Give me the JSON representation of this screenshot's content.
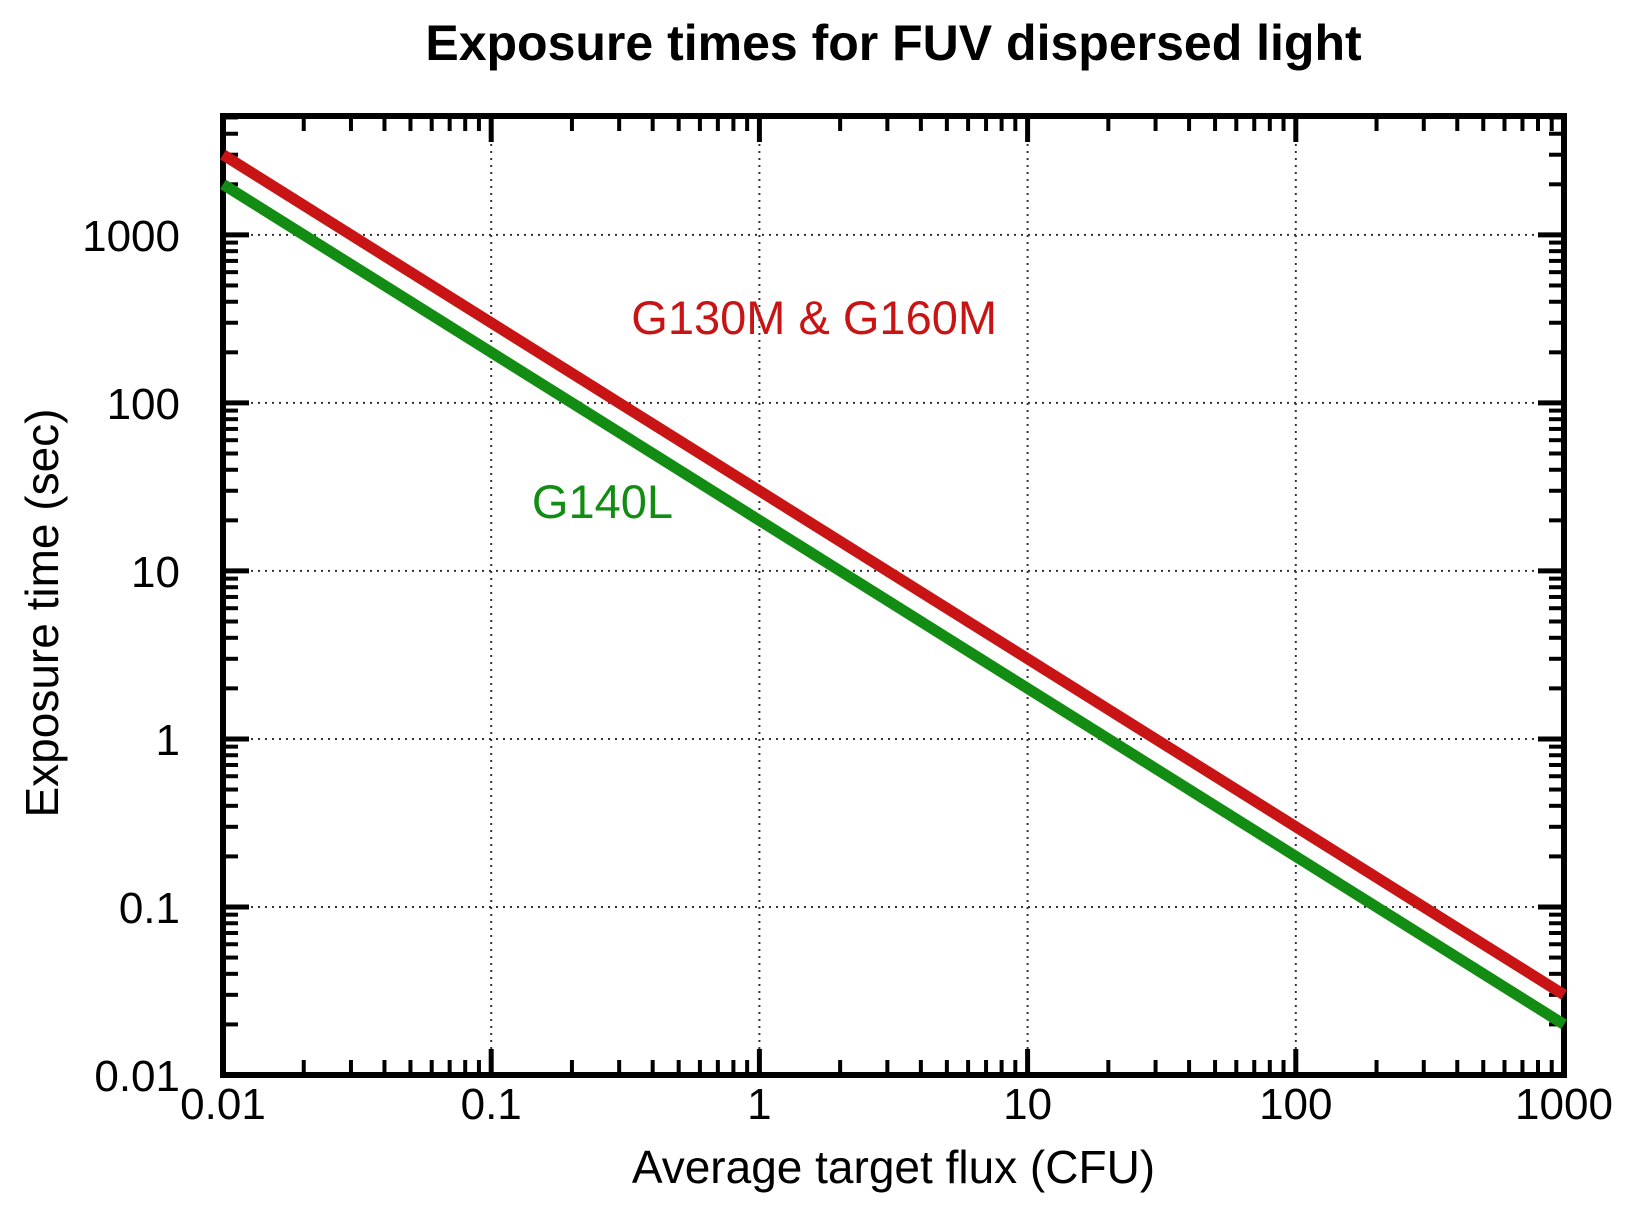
{
  "page": {
    "background": "#ffffff",
    "text_color": "#000000"
  },
  "chart_data": {
    "type": "line",
    "title": "Exposure times for FUV dispersed light",
    "xlabel": "Average target flux (CFU)",
    "ylabel": "Exposure time (sec)",
    "x_scale": "log",
    "y_scale": "log",
    "xlim": [
      0.01,
      1000
    ],
    "ylim": [
      0.01,
      5100
    ],
    "x_ticks": [
      0.01,
      0.1,
      1,
      10,
      100,
      1000
    ],
    "x_tick_labels": [
      "0.01",
      "0.1",
      "1",
      "10",
      "100",
      "1000"
    ],
    "y_ticks": [
      0.01,
      0.1,
      1,
      10,
      100,
      1000
    ],
    "y_tick_labels": [
      "0.01",
      "0.1",
      "1",
      "10",
      "100",
      "1000"
    ],
    "grid": {
      "show": true,
      "style": "dotted",
      "color": "#333333"
    },
    "frame_color": "#000000",
    "legend_position": "inline-labels",
    "series": [
      {
        "name": "G130M & G160M",
        "color": "#c81414",
        "relation": "exposure_time = 30 / flux",
        "x": [
          0.01,
          1000
        ],
        "y": [
          3000,
          0.03
        ],
        "label": {
          "text": "G130M & G160M",
          "x": 1.6,
          "y": 325
        }
      },
      {
        "name": "G140L",
        "color": "#128c12",
        "relation": "exposure_time = 20 / flux",
        "x": [
          0.01,
          1000
        ],
        "y": [
          2000,
          0.02
        ],
        "label": {
          "text": "G140L",
          "x": 0.26,
          "y": 26
        }
      }
    ]
  }
}
